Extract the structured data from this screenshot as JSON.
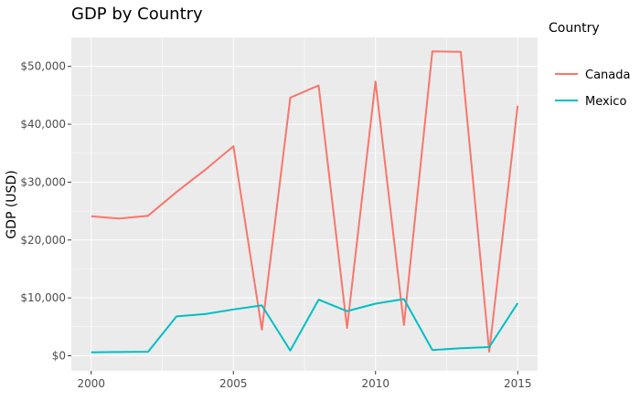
{
  "chart_data": {
    "type": "line",
    "title": "GDP by Country",
    "xlabel": "",
    "ylabel": "GDP (USD)",
    "xlim": [
      1999.3,
      2015.7
    ],
    "ylim": [
      -2600,
      55000
    ],
    "x_ticks": [
      2000,
      2005,
      2010,
      2015
    ],
    "y_ticks": [
      0,
      10000,
      20000,
      30000,
      40000,
      50000
    ],
    "y_tick_labels": [
      "$0",
      "$10,000",
      "$20,000",
      "$30,000",
      "$40,000",
      "$50,000"
    ],
    "grid": true,
    "background": "#ebebeb",
    "legend": {
      "title": "Country",
      "position": "right"
    },
    "x": [
      2000,
      2001,
      2002,
      2003,
      2004,
      2005,
      2006,
      2007,
      2008,
      2009,
      2010,
      2011,
      2012,
      2013,
      2014,
      2015
    ],
    "series": [
      {
        "name": "Canada",
        "color": "#F8766D",
        "values": [
          24100,
          23700,
          24200,
          28300,
          32100,
          36200,
          4500,
          44600,
          46700,
          4800,
          47400,
          5300,
          52600,
          52500,
          700,
          43200
        ]
      },
      {
        "name": "Mexico",
        "color": "#00BFC4",
        "values": [
          600,
          650,
          700,
          6800,
          7200,
          8000,
          8700,
          900,
          9700,
          7700,
          9000,
          9800,
          1000,
          1300,
          1500,
          9100
        ]
      }
    ]
  }
}
